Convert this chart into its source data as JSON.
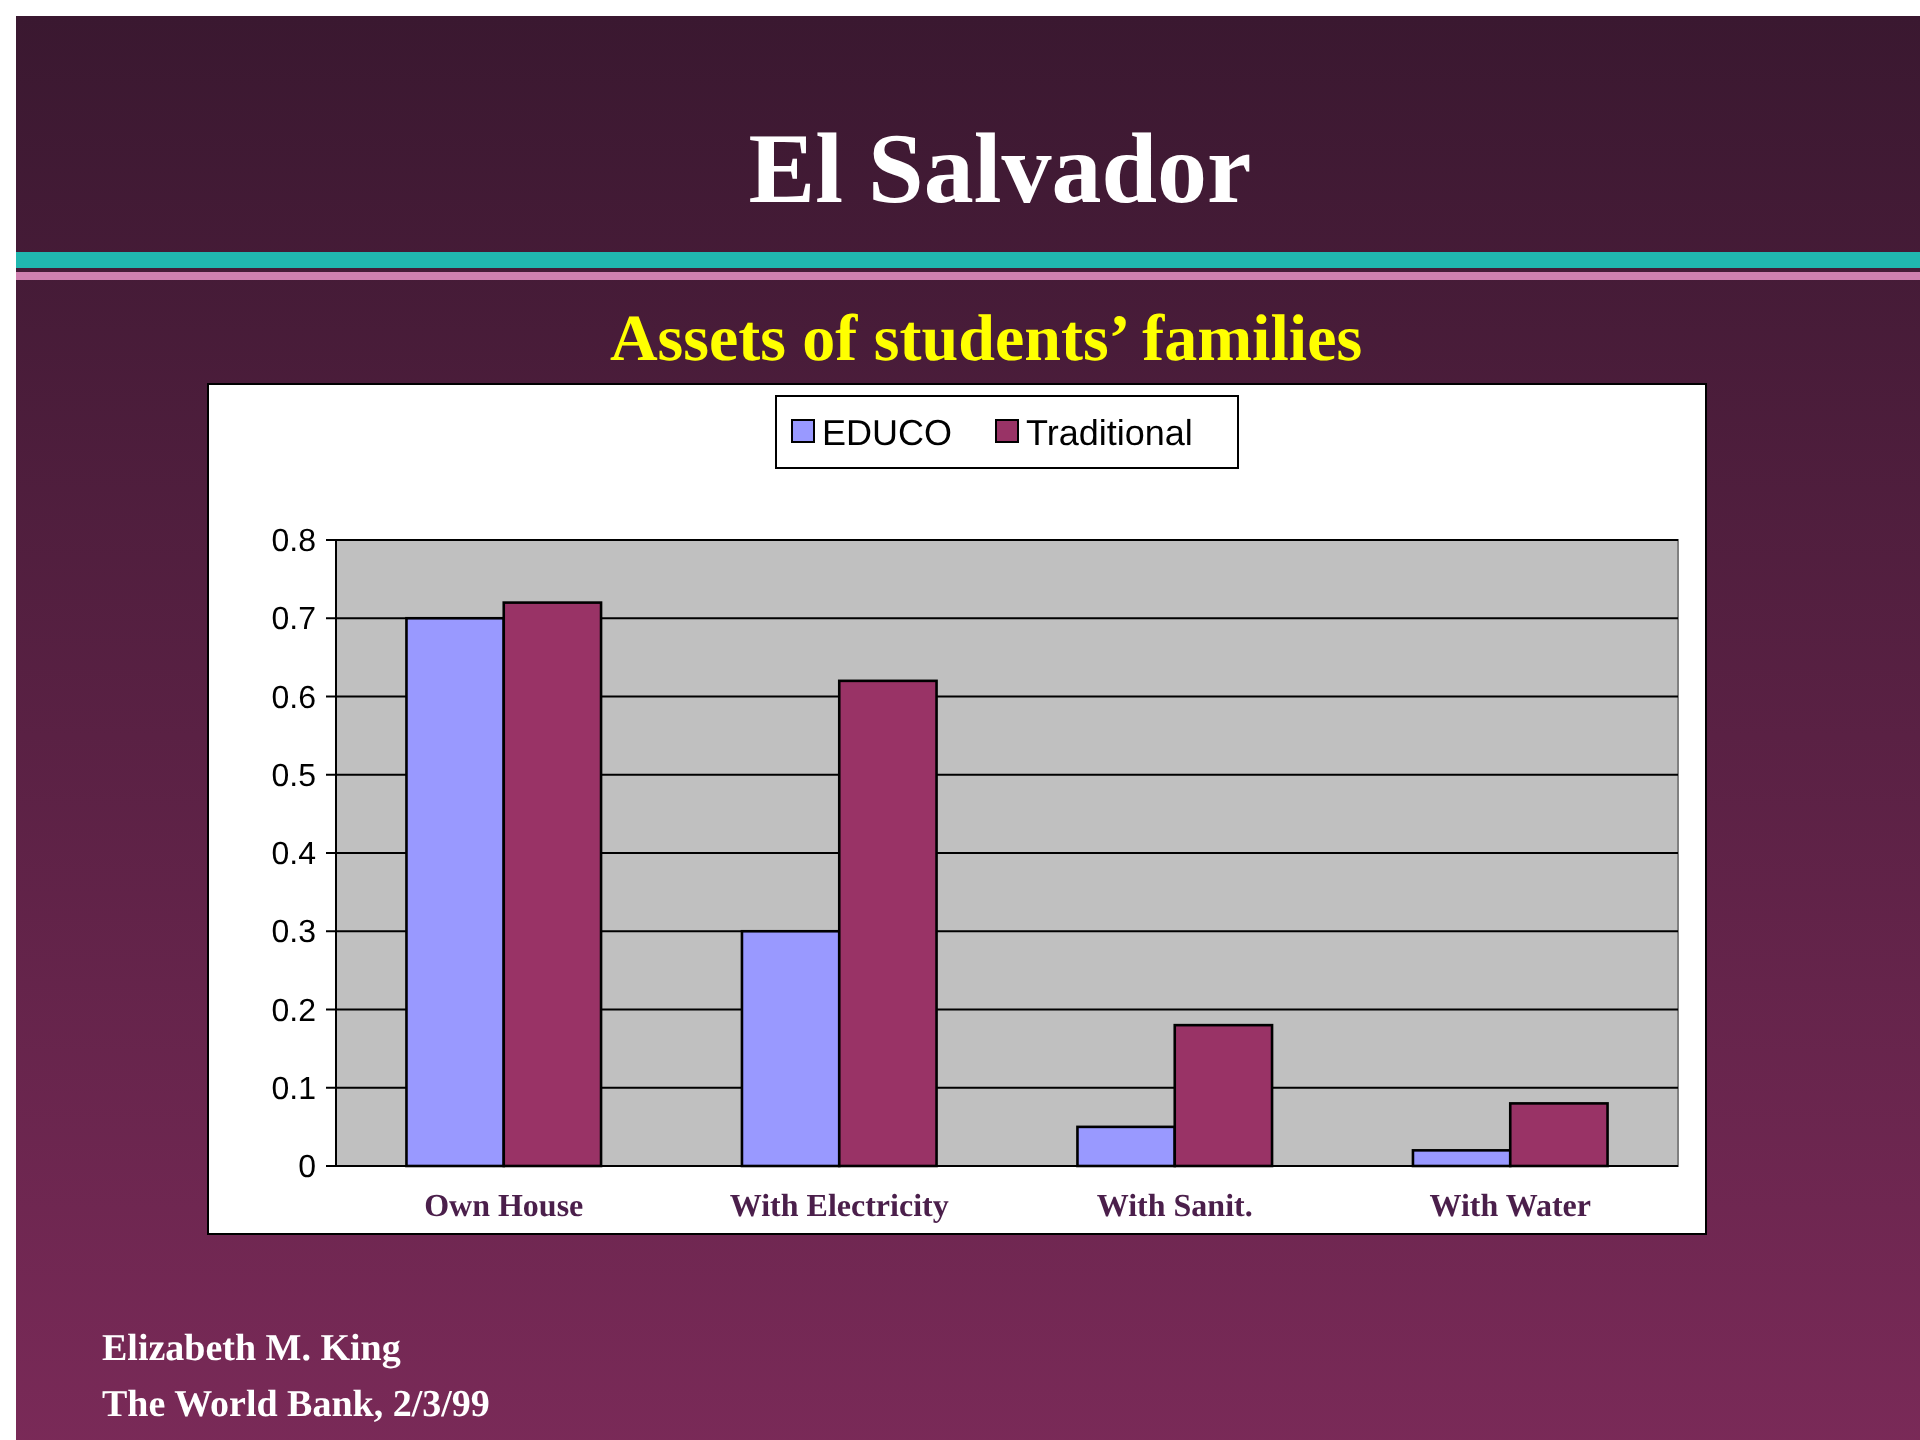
{
  "chart_data": {
    "type": "bar",
    "title": "El Salvador",
    "subtitle": "Assets of students’ families",
    "categories": [
      "Own House",
      "With Electricity",
      "With Sanit.",
      "With Water"
    ],
    "series": [
      {
        "name": "EDUCO",
        "color": "#9999ff",
        "values": [
          0.7,
          0.3,
          0.05,
          0.02
        ]
      },
      {
        "name": "Traditional",
        "color": "#993366",
        "values": [
          0.72,
          0.62,
          0.18,
          0.08
        ]
      }
    ],
    "ylim": [
      0,
      0.8
    ],
    "yticks": [
      0,
      0.1,
      0.2,
      0.3,
      0.4,
      0.5,
      0.6,
      0.7,
      0.8
    ],
    "grid": "y",
    "legend": "top",
    "annotations": [
      "Elizabeth M. King",
      "The World Bank, 2/3/99"
    ]
  }
}
